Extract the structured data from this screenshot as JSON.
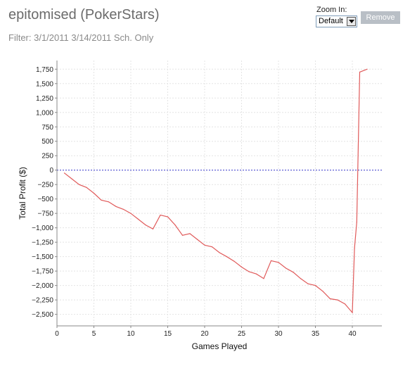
{
  "page": {
    "title": "epitomised (PokerStars)",
    "filter": "Filter: 3/1/2011 3/14/2011 Sch. Only"
  },
  "controls": {
    "zoom_label": "Zoom In:",
    "zoom_value": "Default",
    "remove_label": "Remove"
  },
  "colors": {
    "line": "#e05a5a",
    "zero_line": "#3a3ad0",
    "grid": "#e4e4e4"
  },
  "chart_data": {
    "type": "line",
    "title": "",
    "xlabel": "Games Played",
    "ylabel": "Total Profit ($)",
    "xlim": [
      0,
      44
    ],
    "ylim": [
      -2700,
      1900
    ],
    "x_ticks": [
      0,
      5,
      10,
      15,
      20,
      25,
      30,
      35,
      40
    ],
    "y_ticks": [
      -2500,
      -2250,
      -2000,
      -1750,
      -1500,
      -1250,
      -1000,
      -750,
      -500,
      -250,
      0,
      250,
      500,
      750,
      1000,
      1250,
      1500,
      1750
    ],
    "x_tick_labels": [
      "0",
      "5",
      "10",
      "15",
      "20",
      "25",
      "30",
      "35",
      "40"
    ],
    "y_tick_labels": [
      "−2,500",
      "−2,250",
      "−2,000",
      "−1,750",
      "−1,500",
      "−1,250",
      "−1,000",
      "−750",
      "−500",
      "−250",
      "0",
      "250",
      "500",
      "750",
      "1,000",
      "1,250",
      "1,500",
      "1,750"
    ],
    "grid": true,
    "zero_line": true,
    "series": [
      {
        "x": [
          1,
          2,
          3,
          4,
          5,
          6,
          7,
          8,
          9,
          10,
          11,
          12,
          13,
          14,
          15,
          16,
          17,
          18,
          19,
          20,
          21,
          22,
          23,
          24,
          25,
          26,
          27,
          28,
          29,
          30,
          31,
          32,
          33,
          34,
          35,
          36,
          37,
          38,
          39,
          40,
          40.3,
          40.6,
          41,
          42
        ],
        "y": [
          -50,
          -150,
          -250,
          -300,
          -400,
          -520,
          -550,
          -630,
          -680,
          -750,
          -850,
          -950,
          -1020,
          -780,
          -810,
          -950,
          -1130,
          -1100,
          -1200,
          -1300,
          -1330,
          -1430,
          -1500,
          -1580,
          -1680,
          -1760,
          -1800,
          -1880,
          -1570,
          -1600,
          -1700,
          -1770,
          -1880,
          -1970,
          -2000,
          -2100,
          -2230,
          -2250,
          -2320,
          -2470,
          -1350,
          -900,
          1700,
          1750
        ]
      }
    ]
  }
}
